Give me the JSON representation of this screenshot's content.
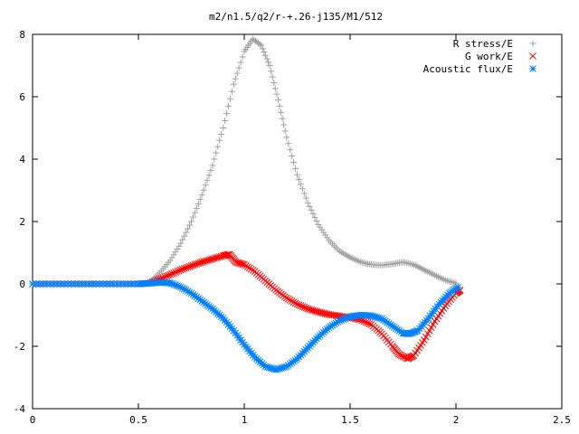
{
  "chart_data": {
    "type": "scatter",
    "title": "m2/n1.5/q2/r-+.26-j135/M1/512",
    "xlabel": "",
    "ylabel": "",
    "xlim": [
      0,
      2.5
    ],
    "ylim": [
      -4,
      8
    ],
    "grid": false,
    "legend_position": "top-right",
    "x_ticks": [
      "0",
      "0.5",
      "1",
      "1.5",
      "2",
      "2.5"
    ],
    "y_ticks": [
      "8",
      "6",
      "4",
      "2",
      "0",
      "-2",
      "-4"
    ],
    "series": [
      {
        "name": "R stress/E",
        "marker": "plus-icon",
        "color": "#a0a0a0",
        "points": [
          [
            0.0,
            0.0
          ],
          [
            0.1,
            0.0
          ],
          [
            0.2,
            0.0
          ],
          [
            0.3,
            0.0
          ],
          [
            0.4,
            0.0
          ],
          [
            0.5,
            0.0
          ],
          [
            0.55,
            0.02
          ],
          [
            0.6,
            0.35
          ],
          [
            0.65,
            0.75
          ],
          [
            0.7,
            1.3
          ],
          [
            0.75,
            2.0
          ],
          [
            0.8,
            2.85
          ],
          [
            0.85,
            3.8
          ],
          [
            0.9,
            5.0
          ],
          [
            0.95,
            6.4
          ],
          [
            1.0,
            7.45
          ],
          [
            1.04,
            7.85
          ],
          [
            1.08,
            7.65
          ],
          [
            1.12,
            7.0
          ],
          [
            1.16,
            5.9
          ],
          [
            1.2,
            4.7
          ],
          [
            1.25,
            3.5
          ],
          [
            1.3,
            2.6
          ],
          [
            1.35,
            1.9
          ],
          [
            1.4,
            1.4
          ],
          [
            1.45,
            1.05
          ],
          [
            1.5,
            0.85
          ],
          [
            1.55,
            0.7
          ],
          [
            1.6,
            0.62
          ],
          [
            1.65,
            0.6
          ],
          [
            1.7,
            0.64
          ],
          [
            1.75,
            0.7
          ],
          [
            1.8,
            0.62
          ],
          [
            1.85,
            0.45
          ],
          [
            1.9,
            0.28
          ],
          [
            1.95,
            0.12
          ],
          [
            2.0,
            0.02
          ]
        ]
      },
      {
        "name": "G work/E",
        "marker": "cross-icon",
        "color": "#ff0000",
        "points": [
          [
            0.0,
            0.0
          ],
          [
            0.1,
            0.0
          ],
          [
            0.2,
            0.0
          ],
          [
            0.3,
            0.0
          ],
          [
            0.4,
            0.0
          ],
          [
            0.5,
            0.0
          ],
          [
            0.55,
            0.02
          ],
          [
            0.6,
            0.15
          ],
          [
            0.65,
            0.3
          ],
          [
            0.7,
            0.45
          ],
          [
            0.75,
            0.58
          ],
          [
            0.8,
            0.7
          ],
          [
            0.85,
            0.8
          ],
          [
            0.9,
            0.9
          ],
          [
            0.93,
            0.95
          ],
          [
            0.96,
            0.7
          ],
          [
            1.0,
            0.62
          ],
          [
            1.05,
            0.4
          ],
          [
            1.1,
            0.1
          ],
          [
            1.15,
            -0.2
          ],
          [
            1.2,
            -0.45
          ],
          [
            1.25,
            -0.65
          ],
          [
            1.3,
            -0.8
          ],
          [
            1.35,
            -0.9
          ],
          [
            1.4,
            -0.98
          ],
          [
            1.45,
            -1.03
          ],
          [
            1.5,
            -1.08
          ],
          [
            1.55,
            -1.15
          ],
          [
            1.6,
            -1.3
          ],
          [
            1.65,
            -1.6
          ],
          [
            1.7,
            -2.0
          ],
          [
            1.73,
            -2.25
          ],
          [
            1.77,
            -2.4
          ],
          [
            1.8,
            -2.3
          ],
          [
            1.85,
            -1.8
          ],
          [
            1.9,
            -1.2
          ],
          [
            1.95,
            -0.7
          ],
          [
            2.0,
            -0.3
          ],
          [
            2.02,
            -0.2
          ]
        ]
      },
      {
        "name": "Acoustic flux/E",
        "marker": "asterisk-icon",
        "color": "#0080ff",
        "points": [
          [
            0.0,
            0.0
          ],
          [
            0.1,
            0.0
          ],
          [
            0.2,
            0.0
          ],
          [
            0.3,
            0.0
          ],
          [
            0.4,
            0.0
          ],
          [
            0.5,
            0.0
          ],
          [
            0.55,
            0.02
          ],
          [
            0.6,
            0.05
          ],
          [
            0.65,
            0.03
          ],
          [
            0.7,
            -0.1
          ],
          [
            0.75,
            -0.3
          ],
          [
            0.8,
            -0.55
          ],
          [
            0.85,
            -0.8
          ],
          [
            0.9,
            -1.1
          ],
          [
            0.95,
            -1.5
          ],
          [
            1.0,
            -1.95
          ],
          [
            1.05,
            -2.35
          ],
          [
            1.1,
            -2.65
          ],
          [
            1.15,
            -2.75
          ],
          [
            1.2,
            -2.65
          ],
          [
            1.25,
            -2.4
          ],
          [
            1.3,
            -2.05
          ],
          [
            1.35,
            -1.7
          ],
          [
            1.4,
            -1.4
          ],
          [
            1.45,
            -1.18
          ],
          [
            1.5,
            -1.05
          ],
          [
            1.55,
            -1.0
          ],
          [
            1.6,
            -1.02
          ],
          [
            1.65,
            -1.12
          ],
          [
            1.7,
            -1.35
          ],
          [
            1.75,
            -1.58
          ],
          [
            1.78,
            -1.6
          ],
          [
            1.82,
            -1.5
          ],
          [
            1.87,
            -1.1
          ],
          [
            1.92,
            -0.65
          ],
          [
            1.97,
            -0.3
          ],
          [
            2.01,
            -0.1
          ]
        ]
      }
    ]
  }
}
